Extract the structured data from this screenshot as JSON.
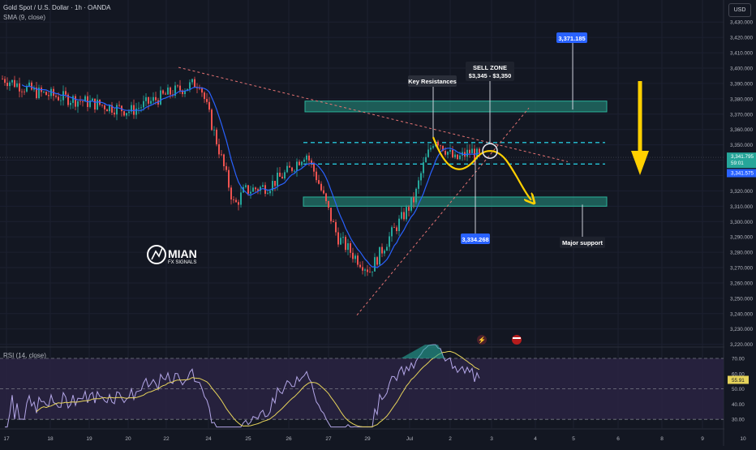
{
  "header": {
    "symbol_line": "Gold Spot / U.S. Dollar · 1h · OANDA",
    "sma_label": "SMA (9, close)",
    "rsi_label": "RSI (14, close)",
    "currency_button": "USD"
  },
  "watermark": {
    "brand": "MIAN",
    "sub": "FX SIGNALS"
  },
  "annotations": {
    "key_resistances": "Key Resistances",
    "sell_zone_title": "SELL ZONE",
    "sell_zone_range": "$3,345 - $3,350",
    "target_label": "3,371.185",
    "low_label": "3,334.268",
    "major_support": "Major support"
  },
  "price_axis": {
    "ticks": [
      "3,430.000",
      "3,420.000",
      "3,410.000",
      "3,400.000",
      "3,390.000",
      "3,380.000",
      "3,370.000",
      "3,360.000",
      "3,350.000",
      "3,340.000",
      "3,330.000",
      "3,320.000",
      "3,310.000",
      "3,300.000",
      "3,290.000",
      "3,280.000",
      "3,270.000",
      "3,260.000",
      "3,250.000",
      "3,240.000",
      "3,230.000",
      "3,220.000"
    ],
    "last_price": "3,341.795",
    "countdown": "59:01",
    "sma_value": "3,341.575"
  },
  "rsi_axis": {
    "ticks": [
      "70.00",
      "60.00",
      "50.00",
      "40.00",
      "30.00"
    ],
    "value": "55.91"
  },
  "time_axis": {
    "ticks": [
      "17",
      "18",
      "19",
      "20",
      "22",
      "24",
      "25",
      "26",
      "27",
      "29",
      "Jul",
      "2",
      "3",
      "4",
      "5",
      "6",
      "8",
      "9",
      "10"
    ]
  },
  "colors": {
    "background": "#131722",
    "candle_up": "#26a69a",
    "candle_down": "#ef5350",
    "sma": "#2962ff",
    "zone": "#2bb29a",
    "projection": "#ffd000",
    "rsi": "#b4a7e8",
    "rsi_band": "#2a2342"
  },
  "chart_data": [
    {
      "type": "candlestick",
      "title": "Gold Spot / U.S. Dollar · 1h · OANDA",
      "ylim": [
        3213,
        3440
      ],
      "overlay": "SMA (9, close)",
      "path_points": [
        {
          "x": "17",
          "y": 3393
        },
        {
          "x": "18",
          "y": 3384
        },
        {
          "x": "19",
          "y": 3378
        },
        {
          "x": "20",
          "y": 3372
        },
        {
          "x": "22",
          "y": 3383
        },
        {
          "x": "22",
          "y": 3391
        },
        {
          "x": "24",
          "y": 3345
        },
        {
          "x": "24",
          "y": 3310
        },
        {
          "x": "25",
          "y": 3320
        },
        {
          "x": "25",
          "y": 3323
        },
        {
          "x": "26",
          "y": 3333
        },
        {
          "x": "26",
          "y": 3345
        },
        {
          "x": "26",
          "y": 3328
        },
        {
          "x": "27",
          "y": 3290
        },
        {
          "x": "27",
          "y": 3278
        },
        {
          "x": "29",
          "y": 3268
        },
        {
          "x": "29",
          "y": 3289
        },
        {
          "x": "Jul",
          "y": 3315
        },
        {
          "x": "Jul",
          "y": 3335
        },
        {
          "x": "Jul",
          "y": 3355
        },
        {
          "x": "2",
          "y": 3340
        },
        {
          "x": "2",
          "y": 3346
        },
        {
          "x": "3",
          "y": 3341.795
        }
      ],
      "levels": [
        {
          "name": "Key Resistances",
          "from": 3373,
          "to": 3377
        },
        {
          "name": "Major support",
          "from": 3311,
          "to": 3315
        },
        {
          "name": "SELL ZONE",
          "from": 3345,
          "to": 3350
        }
      ],
      "last_price": 3341.795,
      "target": 3371.185,
      "marked_low": 3334.268
    },
    {
      "type": "line",
      "title": "RSI (14, close)",
      "ylim": [
        25,
        80
      ],
      "levels": [
        70,
        50,
        30
      ],
      "last_value": 55.91
    }
  ]
}
